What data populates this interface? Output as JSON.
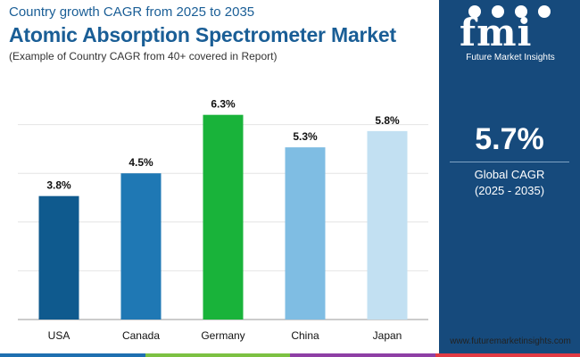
{
  "header": {
    "subtitle_top": "Country growth CAGR from 2025 to 2035",
    "title": "Atomic Absorption Spectrometer Market",
    "note": "(Example of Country CAGR from 40+ covered in Report)"
  },
  "side_panel": {
    "logo_letters": "fmi",
    "logo_text": "Future Market Insights",
    "global_value": "5.7%",
    "global_label": "Global CAGR",
    "global_range": "(2025 - 2035)"
  },
  "footer": {
    "website": "www.futuremarketinsights.com"
  },
  "colors": {
    "title": "#1a5e96",
    "panel": "#164a7c",
    "bars": [
      "#0f5a8e",
      "#1f78b4",
      "#19b33a",
      "#7fbde3",
      "#c2e0f2"
    ],
    "bottom_bar": [
      "#1e6fb0",
      "#7cc142",
      "#8e3fa5",
      "#e23a43"
    ]
  },
  "chart_data": {
    "type": "bar",
    "categories": [
      "USA",
      "Canada",
      "Germany",
      "China",
      "Japan"
    ],
    "values": [
      3.8,
      4.5,
      6.3,
      5.3,
      5.8
    ],
    "data_labels": [
      "3.8%",
      "4.5%",
      "6.3%",
      "5.3%",
      "5.8%"
    ],
    "title": "",
    "xlabel": "",
    "ylabel": "",
    "ylim": [
      0,
      7.5
    ],
    "grid": true
  }
}
